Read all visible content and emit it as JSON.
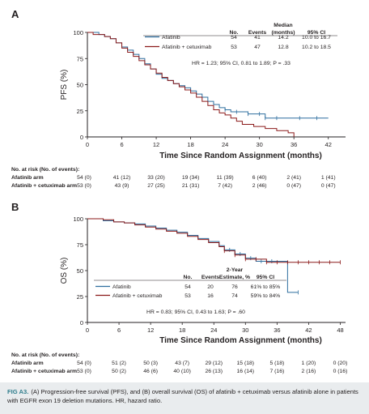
{
  "chart_data": [
    {
      "type": "line",
      "step": true,
      "panel": "A",
      "ylabel": "PFS (%)",
      "xlabel": "Time Since Random Assignment (months)",
      "xlim": [
        0,
        45
      ],
      "ylim": [
        0,
        100
      ],
      "xticks": [
        0,
        6,
        12,
        18,
        24,
        30,
        36,
        42
      ],
      "yticks": [
        0,
        25,
        50,
        75,
        100
      ],
      "table_headers": [
        "No.",
        "Events",
        "Median (months)",
        "95% CI"
      ],
      "series": [
        {
          "name": "Afatinib",
          "color": "#2f6f9f",
          "stats": [
            "54",
            "41",
            "14.2",
            "10.0 to 16.7"
          ],
          "x": [
            0,
            2,
            3,
            4,
            5,
            6,
            7,
            8,
            9,
            10,
            11,
            12,
            13,
            14,
            15,
            16,
            17,
            18,
            19,
            20,
            21,
            22,
            23,
            24,
            25,
            28,
            31,
            42
          ],
          "y": [
            100,
            98,
            96,
            94,
            90,
            86,
            83,
            79,
            75,
            70,
            65,
            60,
            56,
            54,
            51,
            49,
            47,
            44,
            41,
            38,
            34,
            31,
            28,
            26,
            24,
            22,
            18,
            18
          ],
          "censor_x": [
            24,
            26,
            28,
            30,
            31,
            33,
            37,
            40
          ]
        },
        {
          "name": "Afatinib + cetuximab",
          "color": "#8b1a1a",
          "stats": [
            "53",
            "47",
            "12.8",
            "10.2 to 18.5"
          ],
          "x": [
            0,
            1,
            3,
            4,
            5,
            6,
            7,
            8,
            9,
            10,
            11,
            12,
            13,
            14,
            15,
            16,
            17,
            18,
            19,
            20,
            21,
            22,
            23,
            24,
            25,
            26,
            27,
            29,
            31,
            33,
            35,
            36
          ],
          "y": [
            100,
            98,
            96,
            94,
            90,
            85,
            81,
            77,
            73,
            69,
            65,
            61,
            57,
            54,
            51,
            48,
            45,
            42,
            38,
            34,
            30,
            26,
            23,
            21,
            18,
            15,
            12,
            10,
            8,
            6,
            4,
            0
          ],
          "censor_x": []
        }
      ],
      "annotation": "HR = 1.23; 95% CI, 0.81 to 1.89; P = .33"
    },
    {
      "type": "line",
      "step": true,
      "panel": "B",
      "ylabel": "OS (%)",
      "xlabel": "Time Since Random Assignment (months)",
      "xlim": [
        0,
        49
      ],
      "ylim": [
        0,
        100
      ],
      "xticks": [
        0,
        6,
        12,
        18,
        24,
        30,
        36,
        42,
        48
      ],
      "yticks": [
        0,
        25,
        50,
        75,
        100
      ],
      "table_headers": [
        "No.",
        "Events",
        "2-Year Estimate, %",
        "95% CI"
      ],
      "series": [
        {
          "name": "Afatinib",
          "color": "#2f6f9f",
          "stats": [
            "54",
            "20",
            "76",
            "61% to 85%"
          ],
          "x": [
            0,
            3,
            5,
            7,
            9,
            11,
            13,
            15,
            17,
            19,
            21,
            23,
            25,
            26,
            28,
            30,
            32,
            38,
            40
          ],
          "y": [
            100,
            98,
            97,
            96,
            95,
            93,
            91,
            89,
            87,
            84,
            81,
            78,
            74,
            70,
            66,
            62,
            59,
            29,
            29
          ],
          "censor_x": [
            27,
            29,
            31,
            33,
            35,
            40
          ]
        },
        {
          "name": "Afatinib + cetuximab",
          "color": "#8b1a1a",
          "stats": [
            "53",
            "16",
            "74",
            "59% to 84%"
          ],
          "x": [
            0,
            3,
            5,
            7,
            9,
            11,
            13,
            15,
            17,
            19,
            21,
            23,
            25,
            26,
            28,
            30,
            34,
            48
          ],
          "y": [
            100,
            99,
            97,
            96,
            94,
            92,
            90,
            88,
            86,
            83,
            80,
            77,
            73,
            69,
            65,
            61,
            58,
            58
          ],
          "censor_x": [
            26,
            28,
            30,
            32,
            34,
            36,
            38,
            40,
            42,
            44,
            46,
            48
          ]
        }
      ],
      "annotation": "HR = 0.83; 95% CI, 0.43 to 1.63; P = .60"
    }
  ],
  "risk_tables": [
    {
      "header": "No. at risk (No. of events):",
      "rows": [
        {
          "label": "Afatinib arm",
          "values": [
            "54 (0)",
            "41 (12)",
            "33 (20)",
            "19 (34)",
            "11 (39)",
            "6 (40)",
            "2 (41)",
            "1 (41)"
          ]
        },
        {
          "label": "Afatinib + cetuximab arm",
          "values": [
            "53 (0)",
            "43 (9)",
            "27 (25)",
            "21 (31)",
            "7 (42)",
            "2 (46)",
            "0 (47)",
            "0 (47)"
          ]
        }
      ]
    },
    {
      "header": "No. at risk (No. of events):",
      "rows": [
        {
          "label": "Afatinib arm",
          "values": [
            "54 (0)",
            "51 (2)",
            "50 (3)",
            "43 (7)",
            "29 (12)",
            "15 (18)",
            "5 (18)",
            "1 (20)",
            "0 (20)"
          ]
        },
        {
          "label": "Afatinib + cetuximab arm",
          "values": [
            "53 (0)",
            "50 (2)",
            "46 (6)",
            "40 (10)",
            "26 (13)",
            "16 (14)",
            "7 (16)",
            "2 (16)",
            "0 (16)"
          ]
        }
      ]
    }
  ],
  "caption": {
    "label": "FIG A3.",
    "text": "(A) Progression-free survival (PFS), and (B) overall survival (OS) of afatinib + cetuximab versus afatinib alone in patients with EGFR exon 19 deletion mutations. HR, hazard ratio."
  }
}
